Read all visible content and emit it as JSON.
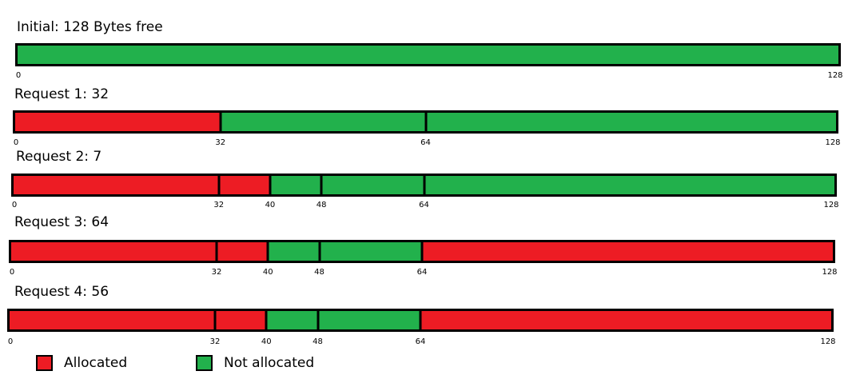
{
  "total_bytes": 128,
  "colors": {
    "allocated": "#ed1c24",
    "free": "#22b14c",
    "border": "#000000"
  },
  "rows": [
    {
      "title": "Initial: 128 Bytes free",
      "segments": [
        {
          "start": 0,
          "end": 128,
          "state": "free"
        }
      ],
      "dividers": [],
      "ticks": [
        "0",
        "128"
      ]
    },
    {
      "title": "Request 1: 32",
      "segments": [
        {
          "start": 0,
          "end": 32,
          "state": "allocated"
        },
        {
          "start": 32,
          "end": 128,
          "state": "free"
        }
      ],
      "dividers": [
        32,
        64
      ],
      "ticks": [
        "0",
        "32",
        "64",
        "128"
      ]
    },
    {
      "title": "Request 2: 7",
      "segments": [
        {
          "start": 0,
          "end": 40,
          "state": "allocated"
        },
        {
          "start": 40,
          "end": 128,
          "state": "free"
        }
      ],
      "dividers": [
        32,
        40,
        48,
        64
      ],
      "ticks": [
        "0",
        "32",
        "40",
        "48",
        "64",
        "128"
      ]
    },
    {
      "title": "Request 3: 64",
      "segments": [
        {
          "start": 0,
          "end": 40,
          "state": "allocated"
        },
        {
          "start": 40,
          "end": 64,
          "state": "free"
        },
        {
          "start": 64,
          "end": 128,
          "state": "allocated"
        }
      ],
      "dividers": [
        32,
        40,
        48,
        64
      ],
      "ticks": [
        "0",
        "32",
        "40",
        "48",
        "64",
        "128"
      ]
    },
    {
      "title": "Request 4: 56",
      "segments": [
        {
          "start": 0,
          "end": 40,
          "state": "allocated"
        },
        {
          "start": 40,
          "end": 64,
          "state": "free"
        },
        {
          "start": 64,
          "end": 128,
          "state": "allocated"
        }
      ],
      "dividers": [
        32,
        40,
        48,
        64
      ],
      "ticks": [
        "0",
        "32",
        "40",
        "48",
        "64",
        "128"
      ]
    }
  ],
  "legend": [
    {
      "label": "Allocated",
      "state": "allocated"
    },
    {
      "label": "Not allocated",
      "state": "free"
    }
  ]
}
